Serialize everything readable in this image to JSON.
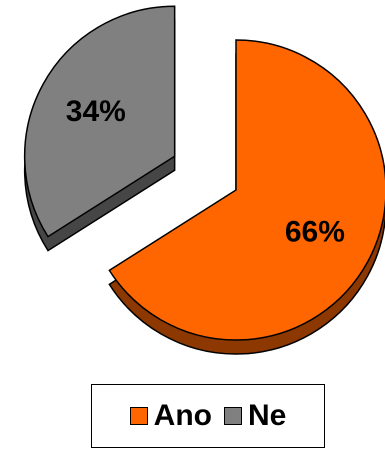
{
  "chart_data": {
    "type": "pie",
    "categories": [
      "Ano",
      "Ne"
    ],
    "values": [
      66,
      34
    ],
    "labels": [
      "66%",
      "34%"
    ],
    "colors": [
      "#FF6600",
      "#808080"
    ],
    "exploded": true,
    "legend_position": "bottom"
  },
  "legend": {
    "items": [
      {
        "label": "Ano",
        "color": "#FF6600"
      },
      {
        "label": "Ne",
        "color": "#808080"
      }
    ]
  }
}
